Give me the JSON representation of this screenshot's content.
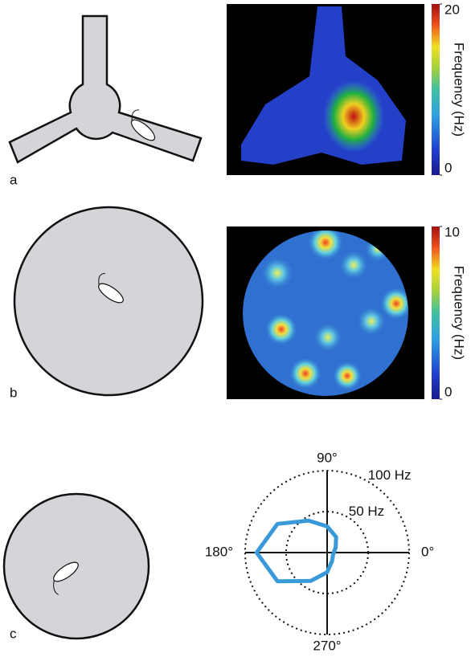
{
  "panels": [
    {
      "label": "a",
      "colorbar": {
        "title": "Frequency (Hz)",
        "lim": [
          0,
          20
        ],
        "ticks": [
          0,
          20
        ]
      }
    },
    {
      "label": "b",
      "colorbar": {
        "title": "Frequency (Hz)",
        "lim": [
          0,
          10
        ],
        "ticks": [
          0,
          10
        ]
      }
    },
    {
      "label": "c"
    }
  ],
  "chart_data": {
    "type": "polar",
    "color": "#3a9ad9",
    "angles": [
      0,
      30,
      60,
      90,
      120,
      150,
      180,
      210,
      240,
      270,
      300,
      330,
      360
    ],
    "values": [
      8,
      12,
      22,
      32,
      45,
      70,
      86,
      70,
      40,
      24,
      12,
      8,
      8
    ],
    "rlim": [
      0,
      100
    ],
    "rticks": [
      {
        "value": 50,
        "label": "50 Hz"
      },
      {
        "value": 100,
        "label": "100 Hz"
      }
    ],
    "angle_ticks": [
      {
        "value": 0,
        "label": "0°"
      },
      {
        "value": 90,
        "label": "90°"
      },
      {
        "value": 180,
        "label": "180°"
      },
      {
        "value": 270,
        "label": "270°"
      }
    ]
  }
}
